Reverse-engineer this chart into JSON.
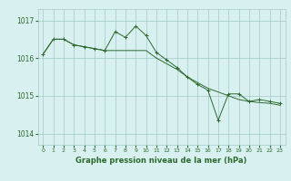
{
  "line1": {
    "x": [
      0,
      1,
      2,
      3,
      4,
      5,
      6,
      7,
      8,
      9,
      10,
      11,
      12,
      13,
      14,
      15,
      16,
      17,
      18,
      19,
      20,
      21,
      22,
      23
    ],
    "y": [
      1016.1,
      1016.5,
      1016.5,
      1016.35,
      1016.3,
      1016.25,
      1016.2,
      1016.7,
      1016.55,
      1016.85,
      1016.6,
      1016.15,
      1015.95,
      1015.75,
      1015.5,
      1015.3,
      1015.15,
      1014.35,
      1015.05,
      1015.05,
      1014.85,
      1014.9,
      1014.85,
      1014.8
    ]
  },
  "line2": {
    "x": [
      0,
      1,
      2,
      3,
      4,
      5,
      6,
      7,
      8,
      9,
      10,
      11,
      12,
      13,
      14,
      15,
      16,
      17,
      18,
      19,
      20,
      21,
      22,
      23
    ],
    "y": [
      1016.1,
      1016.5,
      1016.5,
      1016.35,
      1016.3,
      1016.25,
      1016.2,
      1016.2,
      1016.2,
      1016.2,
      1016.2,
      1016.0,
      1015.85,
      1015.7,
      1015.5,
      1015.35,
      1015.2,
      1015.1,
      1015.0,
      1014.9,
      1014.85,
      1014.82,
      1014.8,
      1014.75
    ]
  },
  "color": "#2d6a2d",
  "bg_color": "#d8f0f0",
  "grid_color": "#a0c8c8",
  "ylabel_ticks": [
    1014,
    1015,
    1016,
    1017
  ],
  "xlim": [
    -0.5,
    23.5
  ],
  "ylim": [
    1013.7,
    1017.3
  ],
  "xlabel": "Graphe pression niveau de la mer (hPa)",
  "xlabel_color": "#2d6a2d",
  "tick_color": "#2d6a2d"
}
